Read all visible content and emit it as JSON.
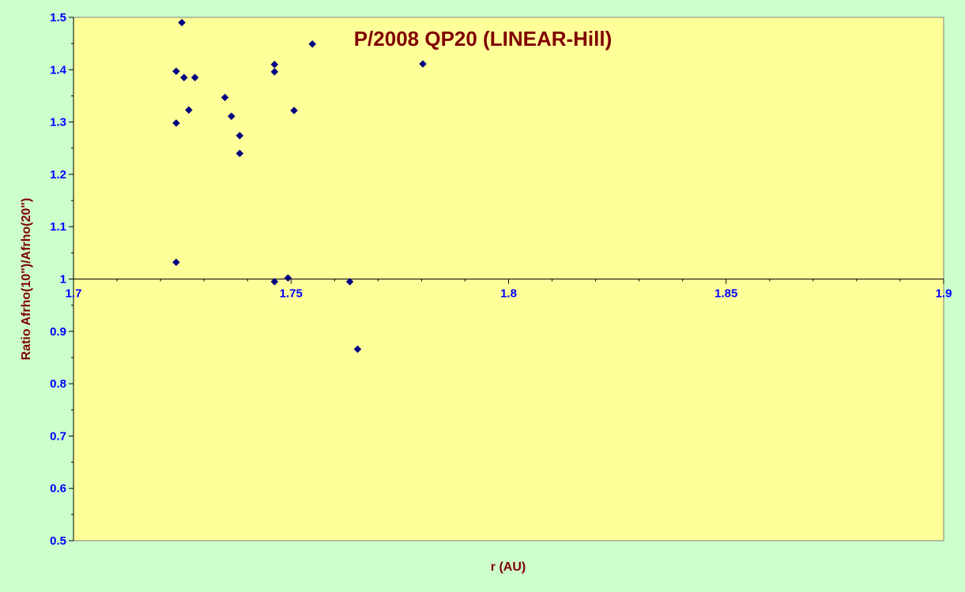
{
  "chart_data": {
    "type": "scatter",
    "title": "P/2008 QP20 (LINEAR-Hill)",
    "xlabel": "r (AU)",
    "ylabel": "Ratio Afrho(10\")/Afrho(20\")",
    "xlim": [
      1.7,
      1.9
    ],
    "ylim": [
      0.5,
      1.5
    ],
    "x_ticks": [
      "1.7",
      "1.75",
      "1.8",
      "1.85",
      "1.9"
    ],
    "y_ticks": [
      "0.5",
      "0.6",
      "0.7",
      "0.8",
      "0.9",
      "1",
      "1.1",
      "1.2",
      "1.3",
      "1.4",
      "1.5"
    ],
    "grid": false,
    "legend": "none",
    "series": [
      {
        "marker": "diamond",
        "color": "#000080",
        "x": [
          1.7236,
          1.7236,
          1.7236,
          1.7249,
          1.7254,
          1.7265,
          1.7279,
          1.7348,
          1.7363,
          1.7382,
          1.7382,
          1.7462,
          1.7462,
          1.7462,
          1.7493,
          1.7507,
          1.7549,
          1.7635,
          1.7653,
          1.7803
        ],
        "y": [
          1.397,
          1.298,
          1.032,
          1.49,
          1.385,
          1.323,
          1.385,
          1.347,
          1.311,
          1.274,
          1.24,
          1.41,
          1.396,
          0.995,
          1.002,
          1.322,
          1.449,
          0.995,
          0.866,
          1.411
        ]
      }
    ],
    "colors": {
      "page_background": "#ccffcc",
      "plot_background": "#ffff99",
      "axis": "#000000",
      "tick_labels": "#0000ff",
      "titles": "#800000",
      "marker": "#000080"
    }
  }
}
